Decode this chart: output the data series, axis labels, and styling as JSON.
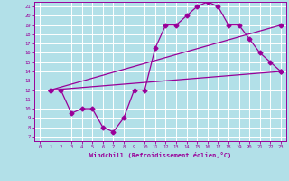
{
  "xlabel": "Windchill (Refroidissement éolien,°C)",
  "bg_color": "#b2e0e8",
  "grid_color": "#ffffff",
  "line_color": "#990099",
  "xlim": [
    -0.5,
    23.5
  ],
  "ylim": [
    6.5,
    21.5
  ],
  "xticks": [
    0,
    1,
    2,
    3,
    4,
    5,
    6,
    7,
    8,
    9,
    10,
    11,
    12,
    13,
    14,
    15,
    16,
    17,
    18,
    19,
    20,
    21,
    22,
    23
  ],
  "yticks": [
    7,
    8,
    9,
    10,
    11,
    12,
    13,
    14,
    15,
    16,
    17,
    18,
    19,
    20,
    21
  ],
  "curve1_x": [
    1,
    2,
    3,
    4,
    5,
    6,
    7,
    8,
    9,
    10,
    11,
    12,
    13,
    14,
    15,
    16,
    17,
    18,
    19,
    20,
    21,
    22,
    23
  ],
  "curve1_y": [
    12,
    12,
    9.5,
    10,
    10,
    8,
    7.5,
    9,
    12,
    12,
    16.5,
    19,
    19,
    20,
    21,
    21.5,
    21,
    19,
    19,
    17.5,
    16,
    15,
    14
  ],
  "curve2_x": [
    1,
    23
  ],
  "curve2_y": [
    12,
    19
  ],
  "curve3_x": [
    1,
    23
  ],
  "curve3_y": [
    12,
    14
  ],
  "markersize": 2.5,
  "linewidth": 0.9
}
